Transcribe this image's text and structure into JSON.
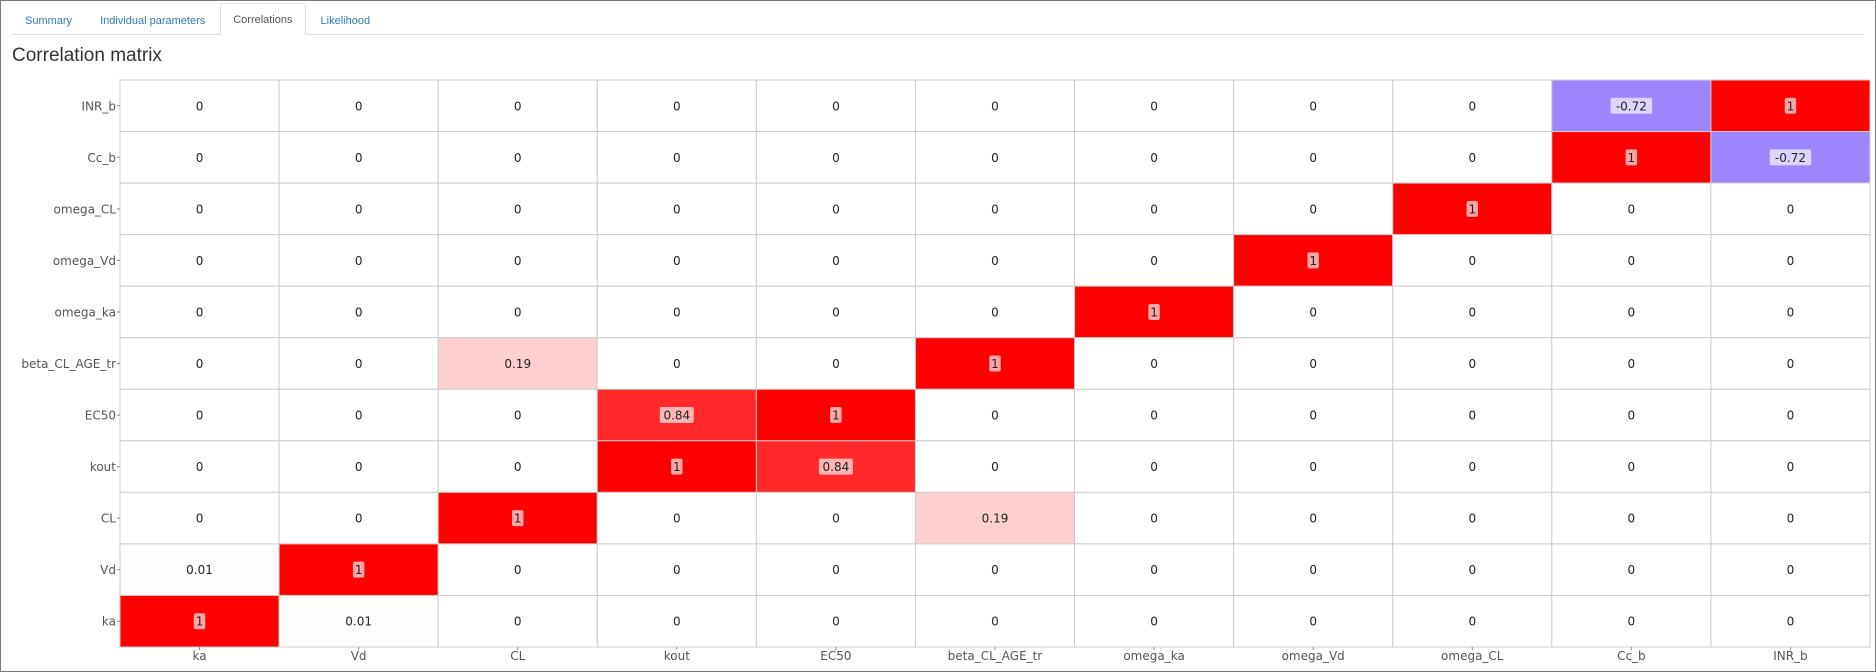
{
  "tabs": [
    {
      "label": "Summary",
      "active": false
    },
    {
      "label": "Individual parameters",
      "active": false
    },
    {
      "label": "Correlations",
      "active": true
    },
    {
      "label": "Likelihood",
      "active": false
    }
  ],
  "page_title": "Correlation matrix",
  "chart_data": {
    "type": "heatmap",
    "title": "",
    "x_categories": [
      "ka",
      "Vd",
      "CL",
      "kout",
      "EC50",
      "beta_CL_AGE_tr",
      "omega_ka",
      "omega_Vd",
      "omega_CL",
      "Cc_b",
      "INR_b"
    ],
    "y_categories_top_to_bottom": [
      "INR_b",
      "Cc_b",
      "omega_CL",
      "omega_Vd",
      "omega_ka",
      "beta_CL_AGE_tr",
      "EC50",
      "kout",
      "CL",
      "Vd",
      "ka"
    ],
    "values": [
      [
        0,
        0,
        0,
        0,
        0,
        0,
        0,
        0,
        0,
        -0.72,
        1
      ],
      [
        0,
        0,
        0,
        0,
        0,
        0,
        0,
        0,
        0,
        1,
        -0.72
      ],
      [
        0,
        0,
        0,
        0,
        0,
        0,
        0,
        0,
        1,
        0,
        0
      ],
      [
        0,
        0,
        0,
        0,
        0,
        0,
        0,
        1,
        0,
        0,
        0
      ],
      [
        0,
        0,
        0,
        0,
        0,
        0,
        1,
        0,
        0,
        0,
        0
      ],
      [
        0,
        0,
        0.19,
        0,
        0,
        1,
        0,
        0,
        0,
        0,
        0
      ],
      [
        0,
        0,
        0,
        0.84,
        1,
        0,
        0,
        0,
        0,
        0,
        0
      ],
      [
        0,
        0,
        0,
        1,
        0.84,
        0,
        0,
        0,
        0,
        0,
        0
      ],
      [
        0,
        0,
        1,
        0,
        0,
        0.19,
        0,
        0,
        0,
        0,
        0
      ],
      [
        0.01,
        1,
        0,
        0,
        0,
        0,
        0,
        0,
        0,
        0,
        0
      ],
      [
        1,
        0.01,
        0,
        0,
        0,
        0,
        0,
        0,
        0,
        0,
        0
      ]
    ],
    "zlim": [
      -1,
      1
    ],
    "colors": {
      "positive": "#ff0000",
      "negative": "#7755ff",
      "zero": "#ffffff",
      "grid": "#cccccc",
      "axis_text": "#555555",
      "cell_text": "#222222"
    }
  }
}
